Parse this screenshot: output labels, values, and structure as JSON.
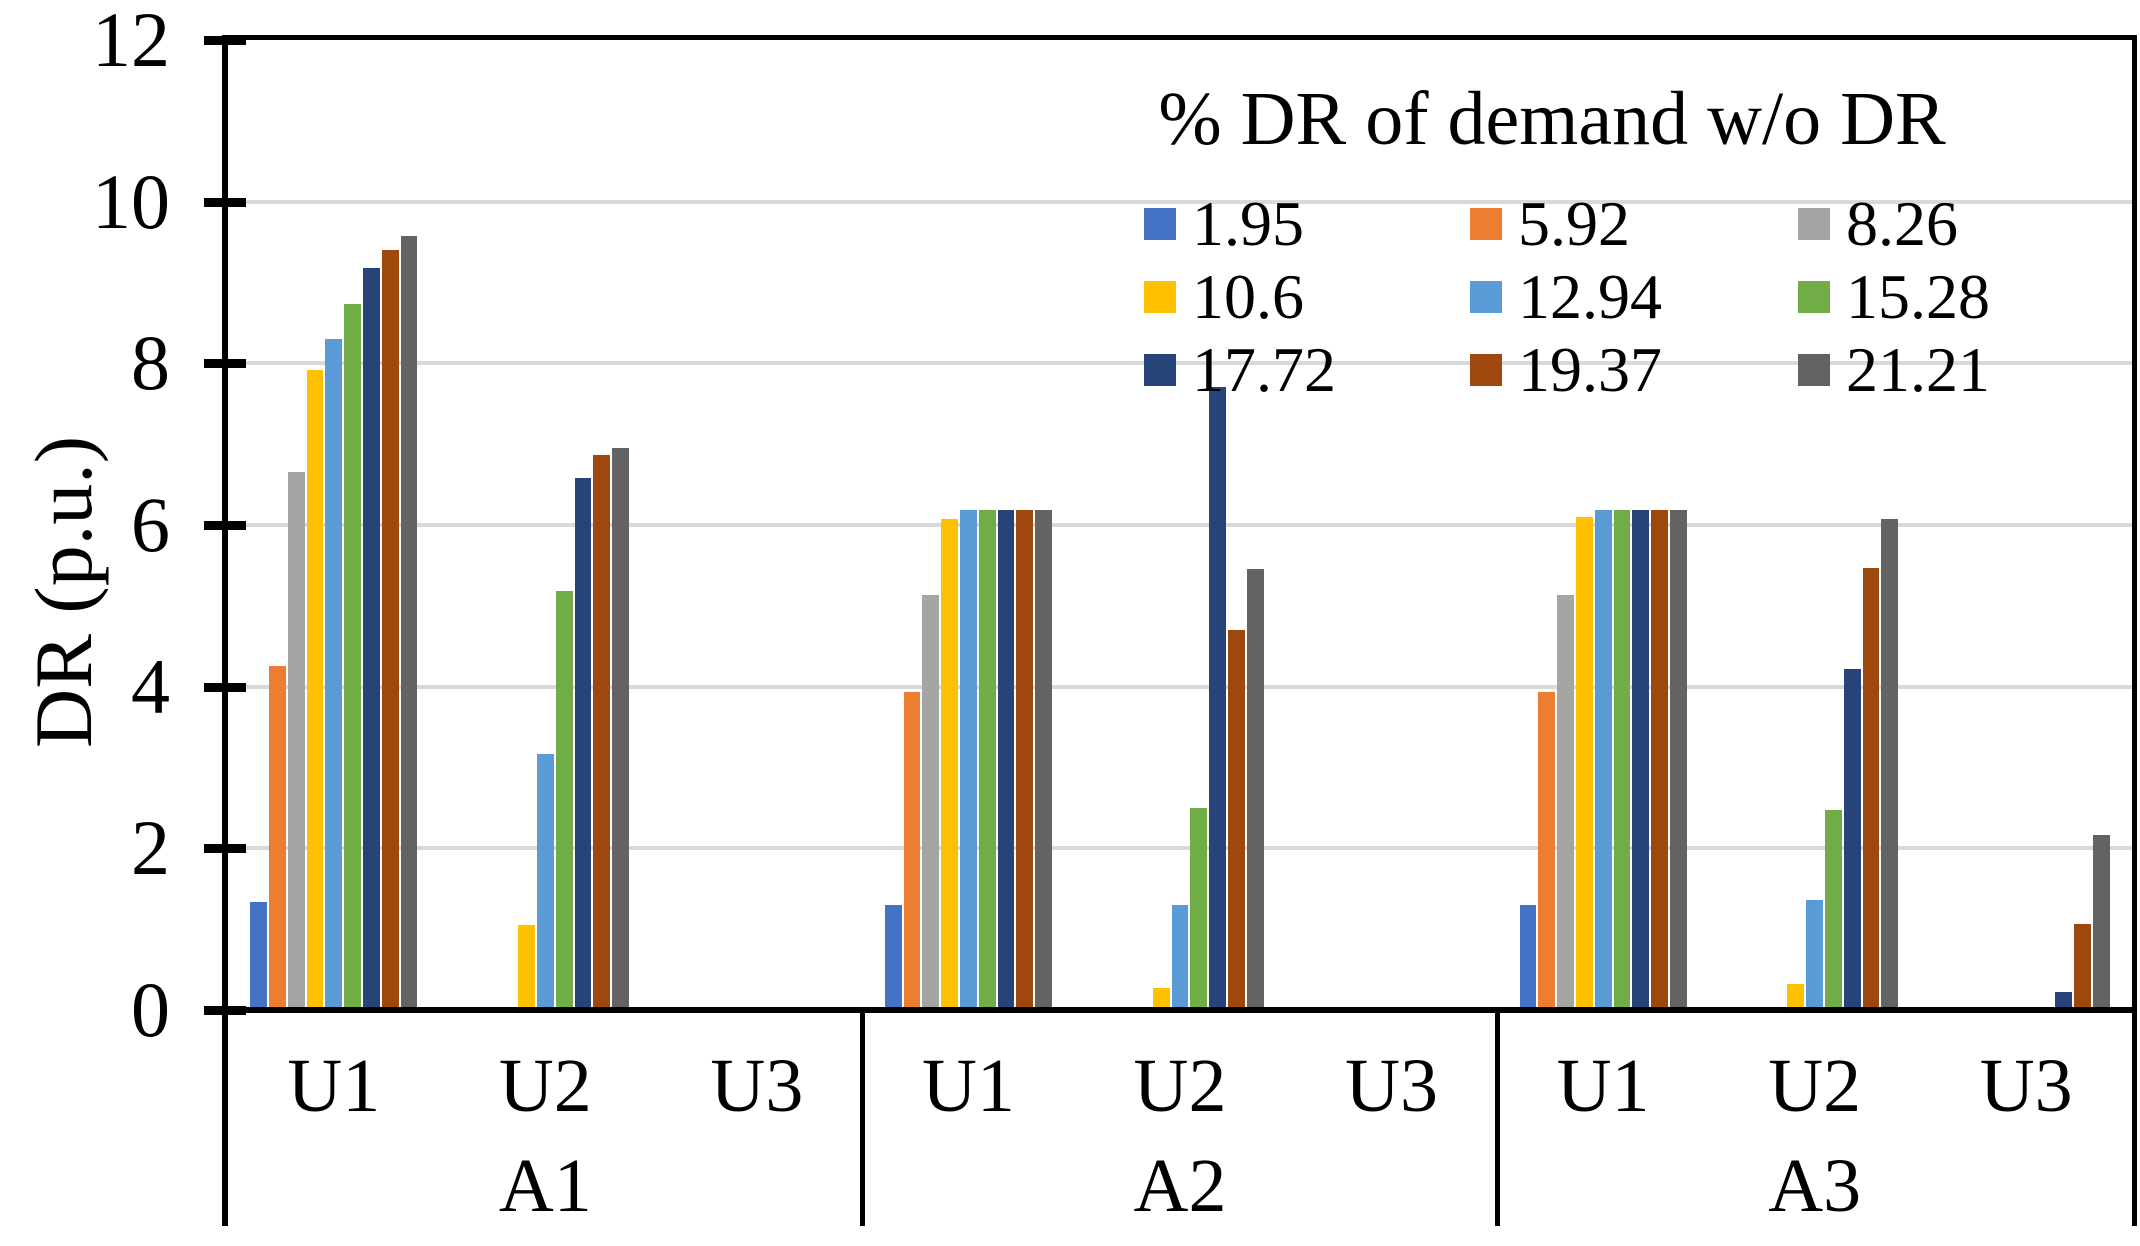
{
  "figure": {
    "y_axis_title": "DR (p.u.)",
    "legend_title": "% DR of demand w/o DR"
  },
  "chart_data": {
    "type": "bar",
    "title": "",
    "xlabel": "",
    "ylabel": "DR (p.u.)",
    "ylim": [
      0,
      12
    ],
    "yticks": [
      0,
      2,
      4,
      6,
      8,
      10,
      12
    ],
    "grid": true,
    "legend_title": "% DR of demand w/o DR",
    "legend_position": "top-right-inside",
    "legend_layout": "3x3-grid",
    "panels": [
      "A1",
      "A2",
      "A3"
    ],
    "subgroups": [
      "U1",
      "U2",
      "U3"
    ],
    "group_order": [
      "A1-U1",
      "A1-U2",
      "A1-U3",
      "A2-U1",
      "A2-U2",
      "A2-U3",
      "A3-U1",
      "A3-U2",
      "A3-U3"
    ],
    "series": [
      {
        "name": "1.95",
        "color": "#4472C4",
        "values": [
          1.33,
          0,
          0,
          1.3,
          0,
          0,
          1.3,
          0,
          0
        ]
      },
      {
        "name": "5.92",
        "color": "#ED7D31",
        "values": [
          4.25,
          0,
          0,
          3.93,
          0,
          0,
          3.93,
          0,
          0
        ]
      },
      {
        "name": "8.26",
        "color": "#A5A5A5",
        "values": [
          6.65,
          0,
          0,
          5.14,
          0,
          0,
          5.13,
          0,
          0
        ]
      },
      {
        "name": "10.6",
        "color": "#FFC000",
        "values": [
          7.92,
          1.05,
          0,
          6.08,
          0.27,
          0,
          6.1,
          0.32,
          0
        ]
      },
      {
        "name": "12.94",
        "color": "#5B9BD5",
        "values": [
          8.3,
          3.17,
          0,
          6.18,
          1.3,
          0,
          6.18,
          1.36,
          0
        ]
      },
      {
        "name": "15.28",
        "color": "#70AD47",
        "values": [
          8.73,
          5.18,
          0,
          6.18,
          2.5,
          0,
          6.18,
          2.47,
          0
        ]
      },
      {
        "name": "17.72",
        "color": "#264478",
        "values": [
          9.18,
          6.58,
          0,
          6.18,
          7.71,
          0,
          6.18,
          4.22,
          0.22
        ]
      },
      {
        "name": "19.37",
        "color": "#9E480E",
        "values": [
          9.4,
          6.87,
          0,
          6.18,
          4.7,
          0,
          6.18,
          5.47,
          1.06
        ]
      },
      {
        "name": "21.21",
        "color": "#636363",
        "values": [
          9.58,
          6.95,
          0,
          6.18,
          5.46,
          0,
          6.18,
          6.08,
          2.17
        ]
      }
    ],
    "axis_color": "#000000",
    "gridline_color": "#D9D9D9"
  }
}
